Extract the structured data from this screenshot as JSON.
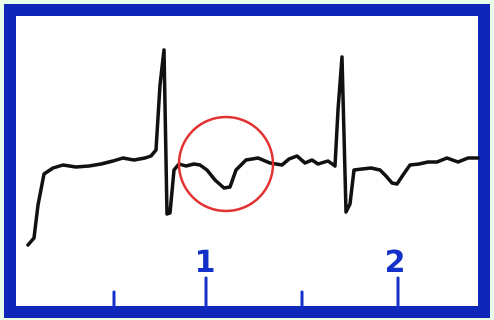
{
  "diagram": {
    "ticks": [
      "1",
      "2"
    ],
    "colors": {
      "page_background": "#e9fce9",
      "frame_border": "#0e27b8",
      "panel_background": "#ffffff",
      "trace": "#111111",
      "highlight_circle": "#e23232",
      "tick_marks": "#1330c8"
    },
    "icons": {
      "highlight": "circle-highlight-icon"
    }
  }
}
